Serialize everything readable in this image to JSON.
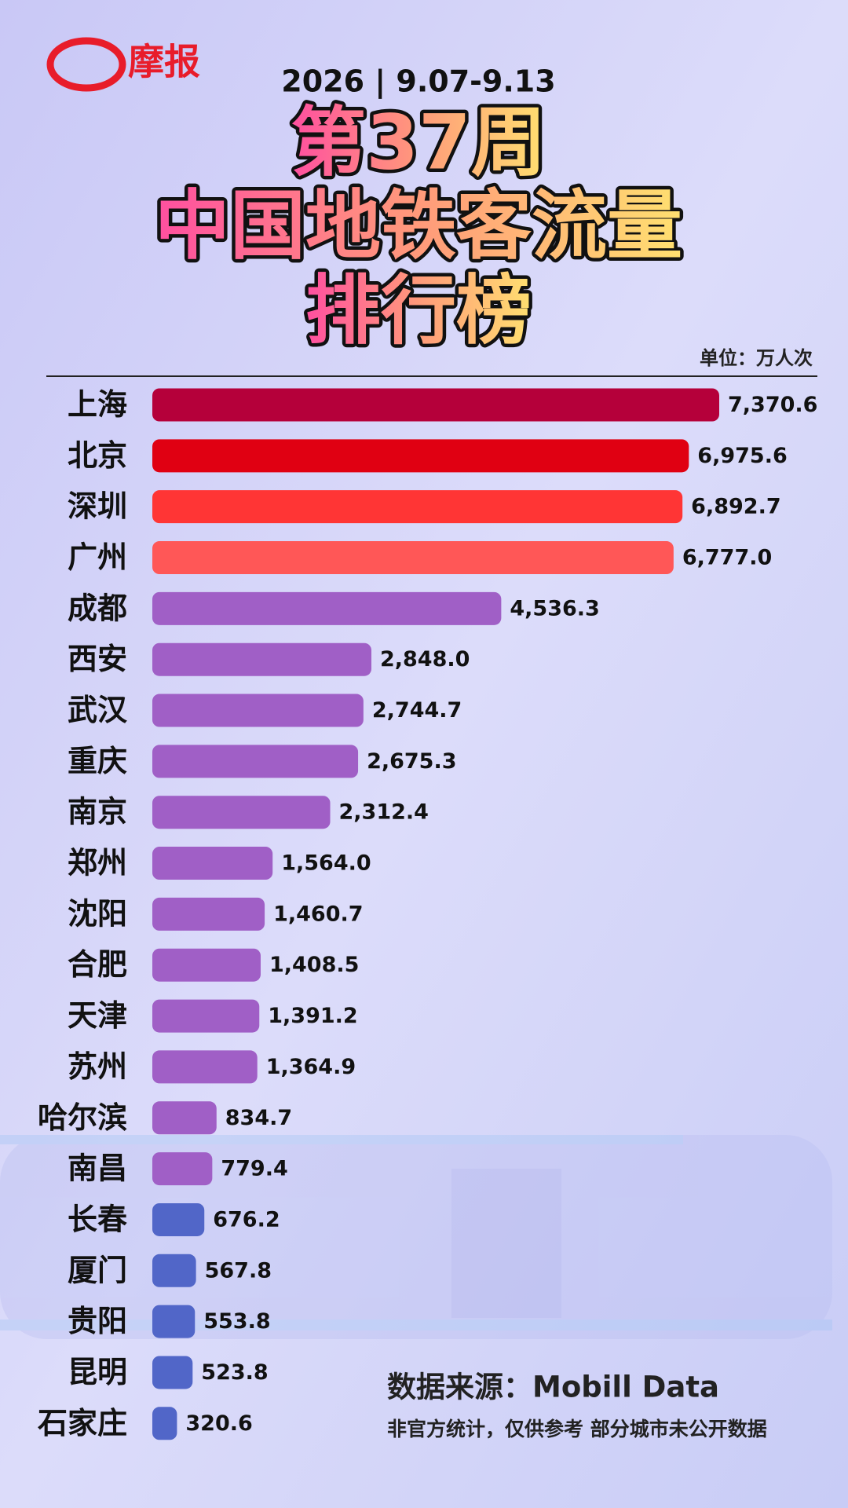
{
  "logo": "摩报",
  "chart_data": {
    "type": "bar",
    "orientation": "horizontal",
    "date": "2026 | 9.07-9.13",
    "title_lines": [
      "第37周",
      "中国地铁客流量",
      "排行榜"
    ],
    "unit": "单位：万人次",
    "categories": [
      "上海",
      "北京",
      "深圳",
      "广州",
      "成都",
      "西安",
      "武汉",
      "重庆",
      "南京",
      "郑州",
      "沈阳",
      "合肥",
      "天津",
      "苏州",
      "哈尔滨",
      "南昌",
      "长春",
      "厦门",
      "贵阳",
      "昆明",
      "石家庄"
    ],
    "values": [
      7370.6,
      6975.6,
      6892.7,
      6777.0,
      4536.3,
      2848.0,
      2744.7,
      2675.3,
      2312.4,
      1564.0,
      1460.7,
      1408.5,
      1391.2,
      1364.9,
      834.7,
      779.4,
      676.2,
      567.8,
      553.8,
      523.8,
      320.6
    ],
    "value_labels": [
      "7,370.6",
      "6,975.6",
      "6,892.7",
      "6,777.0",
      "4,536.3",
      "2,848.0",
      "2,744.7",
      "2,675.3",
      "2,312.4",
      "1,564.0",
      "1,460.7",
      "1,408.5",
      "1,391.2",
      "1,364.9",
      "834.7",
      "779.4",
      "676.2",
      "567.8",
      "553.8",
      "523.8",
      "320.6"
    ],
    "colors": [
      "#b5003a",
      "#e00012",
      "#ff3535",
      "#ff5757",
      "#a05fc6",
      "#a05fc6",
      "#a05fc6",
      "#a05fc6",
      "#a05fc6",
      "#a05fc6",
      "#a05fc6",
      "#a05fc6",
      "#a05fc6",
      "#a05fc6",
      "#a05fc6",
      "#a05fc6",
      "#5166c8",
      "#5166c8",
      "#5166c8",
      "#5166c8",
      "#5166c8"
    ]
  },
  "source": "数据来源：Mobill Data",
  "note": "非官方统计，仅供参考  部分城市未公开数据"
}
